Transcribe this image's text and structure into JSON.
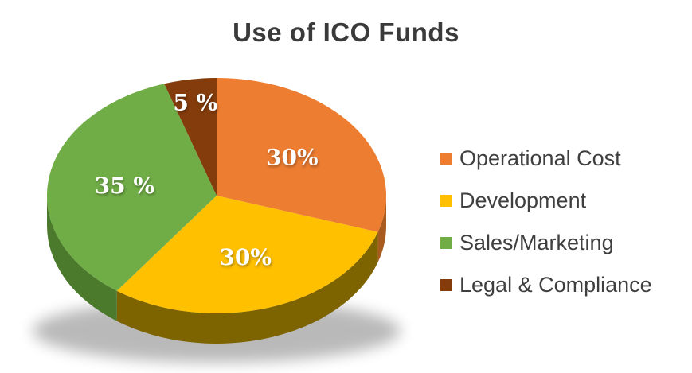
{
  "chart_data": {
    "type": "pie",
    "title": "Use of ICO Funds",
    "legend_position": "right",
    "start_angle_deg": 0,
    "direction": "clockwise",
    "style": "3d",
    "label_color": "#ffffff",
    "title_color": "#3a3a3a",
    "legend_text_color": "#3f3f3f",
    "series": [
      {
        "label": "Operational Cost",
        "value": 30,
        "display": "30%",
        "color": "#ED7D31",
        "side_color": "#A85A1F"
      },
      {
        "label": "Development",
        "value": 30,
        "display": "30%",
        "color": "#FFC000",
        "side_color": "#7E6400"
      },
      {
        "label": "Sales/Marketing",
        "value": 35,
        "display": "35 %",
        "color": "#70AD47",
        "side_color": "#4C7A2D"
      },
      {
        "label": "Legal & Compliance",
        "value": 5,
        "display": "5 %",
        "color": "#843C0C",
        "side_color": "#5E2B08"
      }
    ]
  }
}
